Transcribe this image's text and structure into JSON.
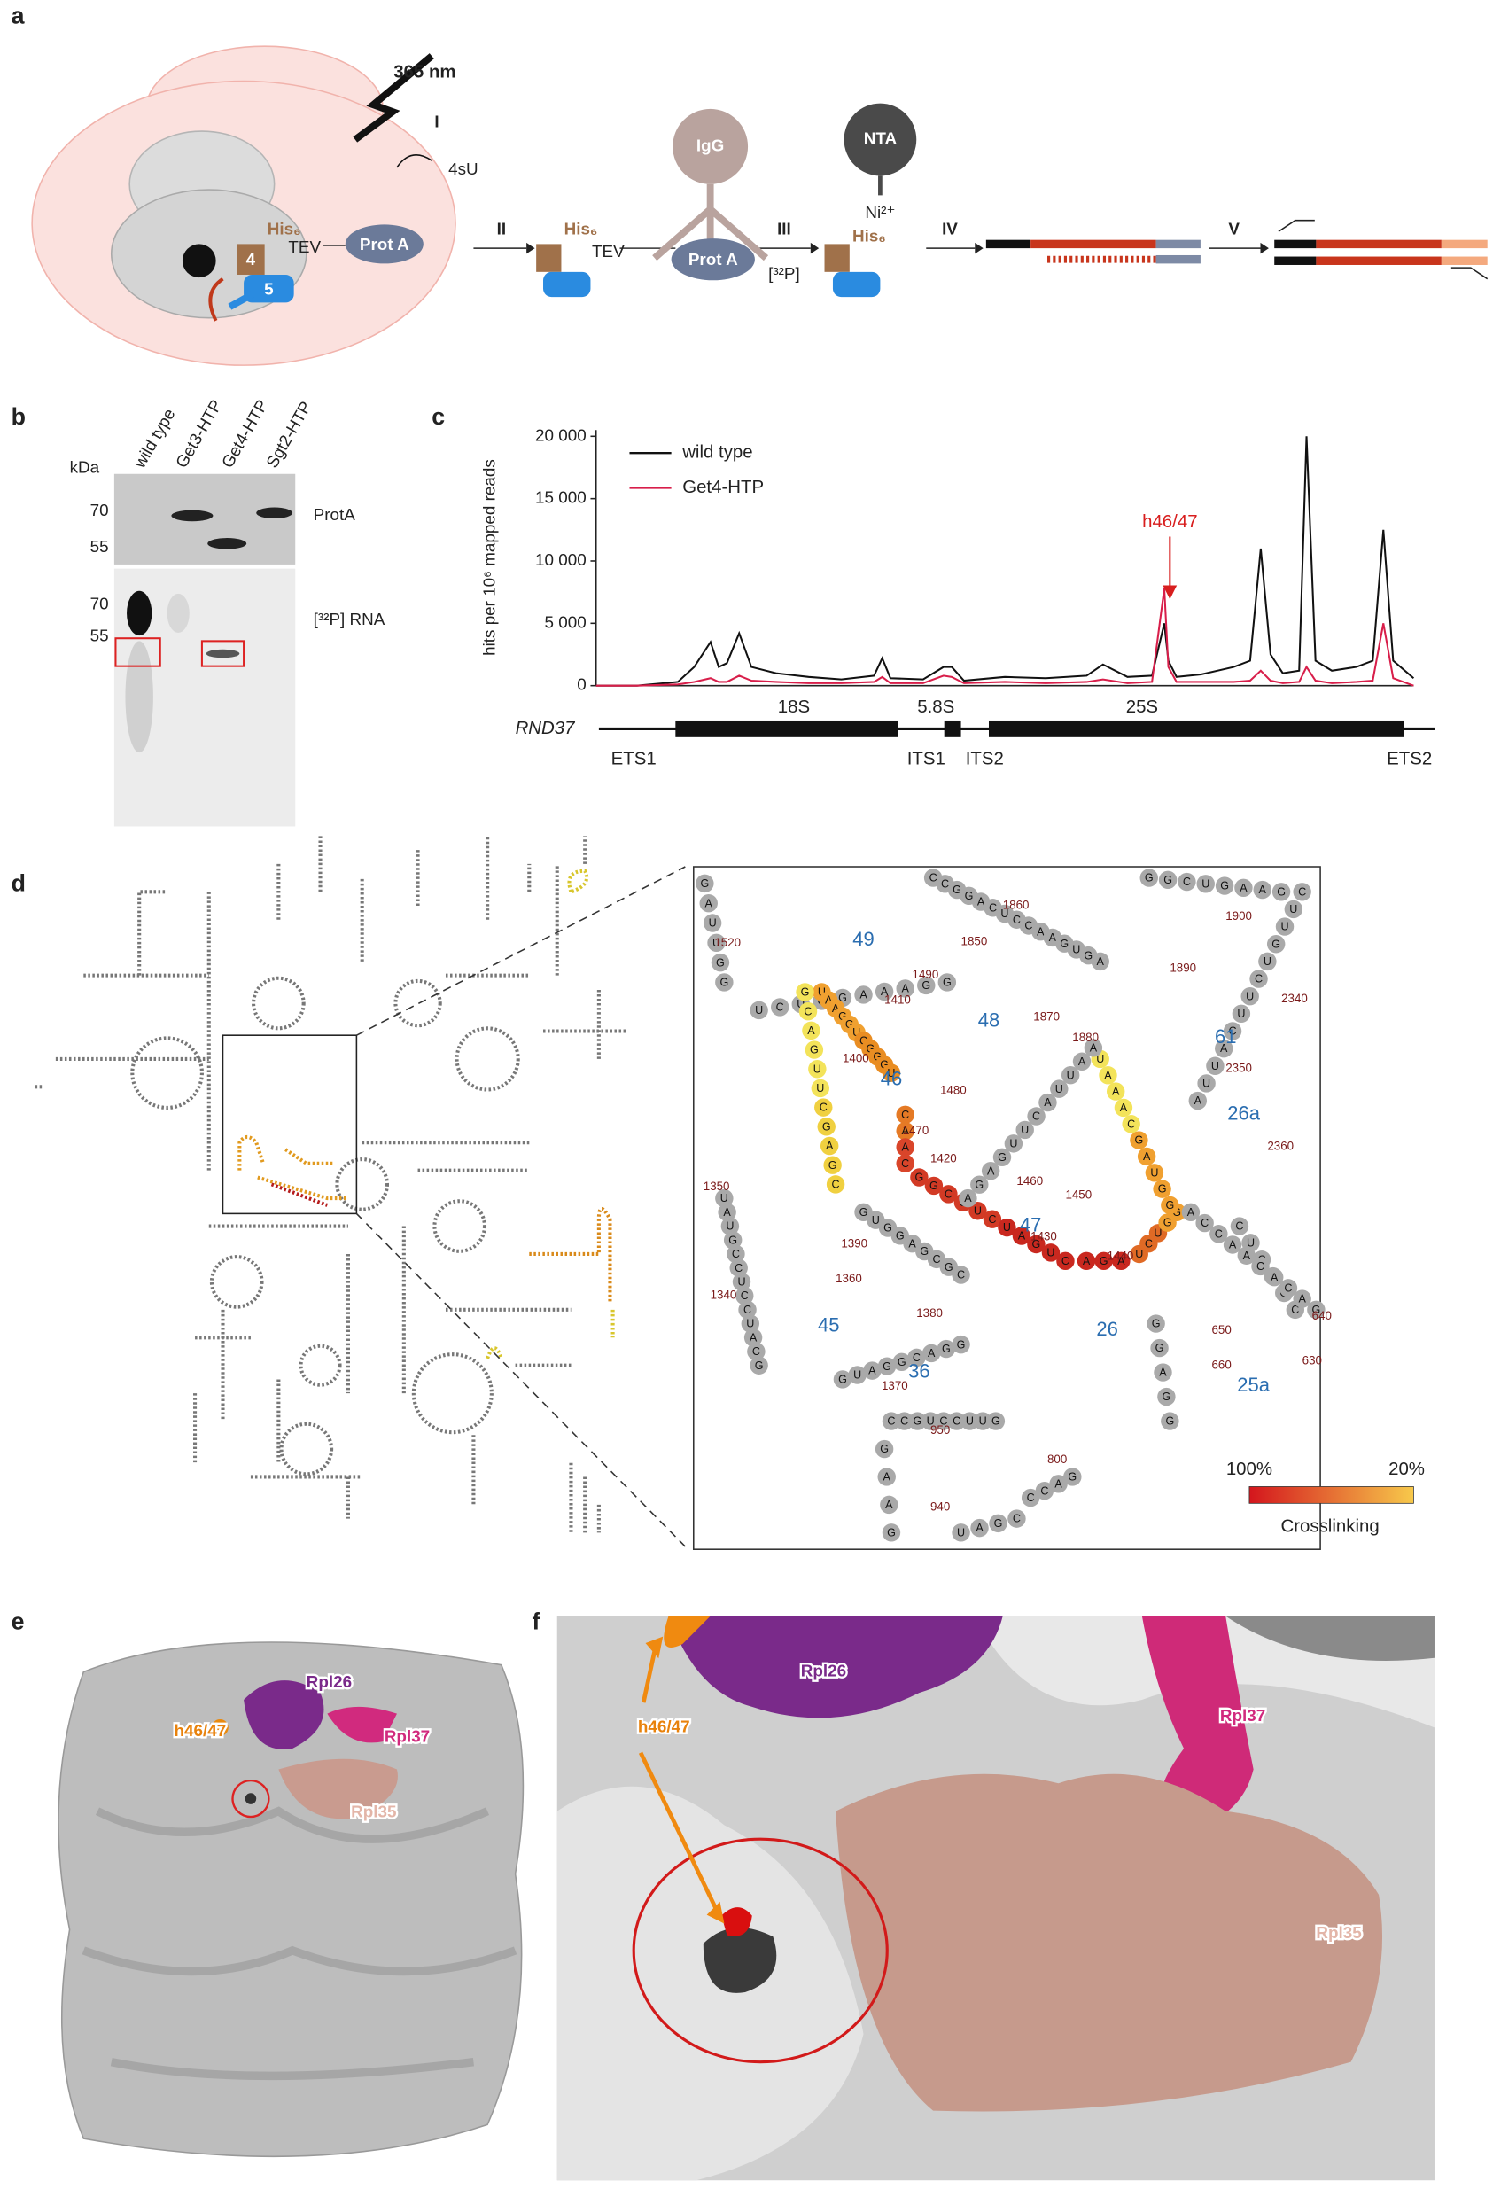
{
  "panels": {
    "a": {
      "label": "a",
      "wavelength": "365 nm",
      "step1": "I",
      "reagent": "4sU",
      "his": "His₆",
      "tev": "TEV",
      "prota": "Prot A",
      "get4": "4",
      "get5": "5",
      "step2": "II",
      "igg": "IgG",
      "step3": "III",
      "radiolabel": "[³²P]",
      "nta": "NTA",
      "nickel": "Ni²⁺",
      "step4": "IV",
      "step5": "V"
    },
    "b": {
      "label": "b",
      "unit": "kDa",
      "lanes": [
        "wild type",
        "Get3-HTP",
        "Get4-HTP",
        "Sgt2-HTP"
      ],
      "markers_top": [
        "70",
        "55"
      ],
      "markers_bottom": [
        "70",
        "55"
      ],
      "blot_top": "ProtA",
      "blot_bottom": "[³²P] RNA"
    },
    "c": {
      "label": "c"
    },
    "d": {
      "label": "d",
      "strands": [
        [
          "G",
          "A",
          "U",
          "U",
          "G",
          "G"
        ],
        [
          "U",
          "C",
          "U",
          "G",
          "G",
          "A",
          "A",
          "A",
          "G",
          "G"
        ],
        [
          "C",
          "C",
          "G",
          "G",
          "A",
          "C",
          "U",
          "C",
          "C",
          "A",
          "A",
          "G",
          "U",
          "G",
          "A"
        ],
        [
          "G",
          "G",
          "C",
          "U",
          "G",
          "A",
          "A",
          "G"
        ],
        [
          "C",
          "U",
          "U",
          "G",
          "U",
          "C",
          "U",
          "U",
          "C",
          "A",
          "U",
          "U",
          "A"
        ],
        [
          "U",
          "A",
          "A",
          "G",
          "G",
          "U",
          "C",
          "G",
          "G",
          "G",
          "U"
        ],
        [
          "G",
          "C",
          "A",
          "G",
          "U",
          "U",
          "C",
          "G",
          "A",
          "G",
          "C"
        ],
        [
          "C",
          "A",
          "A",
          "C"
        ],
        [
          "G",
          "G",
          "C",
          "C",
          "U",
          "C",
          "U",
          "A",
          "G",
          "U",
          "C"
        ],
        [
          "A",
          "G",
          "A"
        ],
        [
          "U",
          "C",
          "U",
          "G",
          "G"
        ],
        [
          "U",
          "A",
          "A",
          "A",
          "C",
          "G",
          "A",
          "U",
          "G",
          "G"
        ],
        [
          "A",
          "G",
          "A",
          "G",
          "U",
          "U",
          "C",
          "A",
          "U",
          "U",
          "A",
          "A"
        ],
        [
          "U",
          "A",
          "U",
          "G",
          "C",
          "C",
          "U",
          "C",
          "C",
          "U",
          "A",
          "C",
          "G"
        ],
        [
          "G",
          "U",
          "G",
          "G",
          "A",
          "G",
          "C",
          "G",
          "C"
        ],
        [
          "G",
          "U",
          "A",
          "G",
          "G",
          "C",
          "A",
          "G",
          "G"
        ],
        [
          "C",
          "C",
          "G",
          "U",
          "C",
          "C",
          "U",
          "U",
          "G"
        ],
        [
          "G",
          "A",
          "A",
          "G"
        ],
        [
          "U",
          "A",
          "G",
          "C"
        ],
        [
          "C",
          "C",
          "A",
          "G"
        ],
        [
          "C",
          "U",
          "C",
          "G",
          "G",
          "C"
        ],
        [
          "G",
          "G",
          "A",
          "G",
          "G"
        ],
        [
          "A",
          "C",
          "C",
          "A",
          "A",
          "C",
          "A",
          "C",
          "A",
          "G"
        ]
      ],
      "positions": [
        1520,
        1860,
        1850,
        1900,
        1890,
        2340,
        1490,
        1410,
        1870,
        1880,
        1480,
        1400,
        1470,
        1420,
        2350,
        1460,
        1450,
        2360,
        1350,
        1390,
        1430,
        1440,
        1360,
        1380,
        1340,
        640,
        650,
        630,
        1370,
        660,
        950,
        800,
        940
      ],
      "helices": [
        "49",
        "48",
        "46",
        "61",
        "26a",
        "47",
        "45",
        "26",
        "36",
        "25a"
      ],
      "colorbar": {
        "high": "100%",
        "low": "20%",
        "title": "Crosslinking"
      }
    },
    "e": {
      "label": "e",
      "tags": [
        "Rpl26",
        "h46/47",
        "Rpl37",
        "Rpl35"
      ]
    },
    "f": {
      "label": "f",
      "tags": [
        "Rpl26",
        "h46/47",
        "Rpl37",
        "Rpl35"
      ]
    }
  },
  "chart_data": {
    "type": "line",
    "y_label": "hits per 10⁶ mapped reads",
    "x": [
      0,
      5,
      10,
      12,
      14,
      15,
      16,
      17.5,
      19,
      22,
      26,
      30,
      34,
      35,
      36,
      40,
      42.5,
      43.5,
      45,
      50,
      55,
      60,
      62,
      65,
      68,
      69.5,
      70,
      71,
      74,
      78,
      80,
      81.3,
      82.5,
      84,
      86,
      86.9,
      88,
      90,
      93,
      95,
      96.3,
      97.5,
      100
    ],
    "xlim": [
      0,
      100
    ],
    "series": [
      {
        "name": "wild type",
        "color": "#111111",
        "values": [
          0,
          0,
          300,
          1500,
          3500,
          1500,
          1800,
          4200,
          1500,
          1000,
          700,
          500,
          800,
          2200,
          600,
          500,
          1500,
          1500,
          400,
          700,
          600,
          800,
          1700,
          700,
          800,
          5000,
          2000,
          700,
          900,
          1500,
          2000,
          11000,
          2500,
          1000,
          1200,
          20000,
          2000,
          1200,
          1500,
          2000,
          12500,
          2000,
          600
        ]
      },
      {
        "name": "Get4-HTP",
        "color": "#d81e4a",
        "values": [
          0,
          0,
          100,
          300,
          600,
          300,
          300,
          800,
          400,
          300,
          200,
          200,
          300,
          700,
          200,
          200,
          800,
          700,
          200,
          300,
          200,
          300,
          500,
          200,
          300,
          7800,
          1500,
          300,
          300,
          300,
          400,
          1200,
          400,
          200,
          300,
          1500,
          400,
          200,
          300,
          400,
          5000,
          600,
          0
        ]
      }
    ],
    "ylim": [
      0,
      20500
    ],
    "yticks": [
      0,
      {
        "value": 5000,
        "label": "5 000"
      },
      {
        "value": 10000,
        "label": "10 000"
      },
      {
        "value": 15000,
        "label": "15 000"
      },
      {
        "value": 20000,
        "label": "20 000"
      }
    ],
    "annotation": "h46/47",
    "gene_map": {
      "name": "RND37",
      "labels": [
        "18S",
        "5.8S",
        "25S",
        "ETS1",
        "ITS1",
        "ITS2",
        "ETS2"
      ]
    }
  }
}
